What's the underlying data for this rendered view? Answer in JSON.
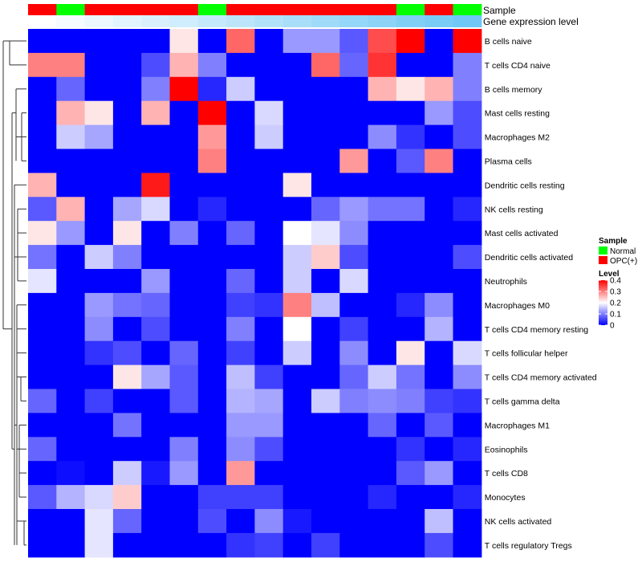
{
  "chart_data": {
    "type": "heatmap",
    "title": "",
    "annotation_labels": {
      "sample": "Sample",
      "expression": "Gene expression level"
    },
    "rows": [
      "B cells naive",
      "T cells CD4 naive",
      "B cells memory",
      "Mast cells resting",
      "Macrophages M2",
      "Plasma cells",
      "Dendritic cells resting",
      "NK cells resting",
      "Mast cells activated",
      "Dendritic cells activated",
      "Neutrophils",
      "Macrophages M0",
      "T cells CD4 memory resting",
      "T cells follicular helper",
      "T cells CD4 memory activated",
      "T cells gamma delta",
      "Macrophages M1",
      "Eosinophils",
      "T cells CD8",
      "Monocytes",
      "NK cells activated",
      "T cells regulatory  Tregs"
    ],
    "columns_sample": [
      "OPC(+)",
      "Normal",
      "OPC(+)",
      "OPC(+)",
      "OPC(+)",
      "OPC(+)",
      "Normal",
      "OPC(+)",
      "OPC(+)",
      "OPC(+)",
      "OPC(+)",
      "OPC(+)",
      "OPC(+)",
      "Normal",
      "OPC(+)",
      "Normal"
    ],
    "columns_expression": [
      0.02,
      0.04,
      0.06,
      0.08,
      0.1,
      0.12,
      0.14,
      0.16,
      0.18,
      0.2,
      0.22,
      0.24,
      0.26,
      0.28,
      0.3,
      0.32
    ],
    "values": [
      [
        0.0,
        0.0,
        0.0,
        0.0,
        0.0,
        0.22,
        0.0,
        0.32,
        0.0,
        0.12,
        0.12,
        0.07,
        0.34,
        0.4,
        0.0,
        0.4
      ],
      [
        0.3,
        0.3,
        0.0,
        0.0,
        0.06,
        0.26,
        0.1,
        0.0,
        0.0,
        0.0,
        0.32,
        0.08,
        0.36,
        0.0,
        0.0,
        0.1
      ],
      [
        0.0,
        0.08,
        0.0,
        0.0,
        0.1,
        0.4,
        0.03,
        0.16,
        0.0,
        0.0,
        0.0,
        0.0,
        0.26,
        0.22,
        0.26,
        0.1
      ],
      [
        0.0,
        0.26,
        0.22,
        0.0,
        0.26,
        0.0,
        0.4,
        0.0,
        0.17,
        0.0,
        0.0,
        0.0,
        0.0,
        0.0,
        0.12,
        0.06
      ],
      [
        0.0,
        0.16,
        0.13,
        0.0,
        0.0,
        0.0,
        0.28,
        0.0,
        0.16,
        0.0,
        0.0,
        0.0,
        0.11,
        0.04,
        0.0,
        0.06
      ],
      [
        0.0,
        0.0,
        0.0,
        0.0,
        0.0,
        0.0,
        0.3,
        0.0,
        0.0,
        0.0,
        0.0,
        0.28,
        0.0,
        0.07,
        0.3,
        0.0
      ],
      [
        0.26,
        0.0,
        0.0,
        0.0,
        0.38,
        0.0,
        0.0,
        0.0,
        0.0,
        0.22,
        0.0,
        0.0,
        0.0,
        0.0,
        0.0,
        0.0
      ],
      [
        0.07,
        0.26,
        0.0,
        0.13,
        0.17,
        0.0,
        0.03,
        0.0,
        0.0,
        0.0,
        0.08,
        0.12,
        0.09,
        0.09,
        0.0,
        0.03
      ],
      [
        0.22,
        0.12,
        0.0,
        0.22,
        0.0,
        0.1,
        0.0,
        0.08,
        0.0,
        0.2,
        0.18,
        0.11,
        0.0,
        0.0,
        0.0,
        0.0
      ],
      [
        0.09,
        0.0,
        0.16,
        0.1,
        0.0,
        0.0,
        0.0,
        0.0,
        0.0,
        0.16,
        0.24,
        0.06,
        0.0,
        0.0,
        0.0,
        0.06
      ],
      [
        0.18,
        0.0,
        0.0,
        0.0,
        0.12,
        0.0,
        0.0,
        0.08,
        0.0,
        0.16,
        0.0,
        0.17,
        0.0,
        0.0,
        0.0,
        0.0
      ],
      [
        0.0,
        0.0,
        0.12,
        0.09,
        0.08,
        0.0,
        0.0,
        0.05,
        0.04,
        0.3,
        0.15,
        0.0,
        0.0,
        0.03,
        0.11,
        0.0
      ],
      [
        0.0,
        0.0,
        0.11,
        0.0,
        0.06,
        0.0,
        0.0,
        0.1,
        0.0,
        0.2,
        0.0,
        0.05,
        0.0,
        0.0,
        0.14,
        0.0
      ],
      [
        0.0,
        0.0,
        0.04,
        0.06,
        0.0,
        0.08,
        0.0,
        0.05,
        0.0,
        0.16,
        0.0,
        0.11,
        0.0,
        0.22,
        0.0,
        0.17
      ],
      [
        0.0,
        0.0,
        0.0,
        0.22,
        0.13,
        0.07,
        0.0,
        0.15,
        0.05,
        0.0,
        0.0,
        0.08,
        0.16,
        0.09,
        0.0,
        0.11
      ],
      [
        0.08,
        0.0,
        0.05,
        0.0,
        0.0,
        0.07,
        0.0,
        0.14,
        0.13,
        0.0,
        0.16,
        0.1,
        0.11,
        0.1,
        0.05,
        0.04
      ],
      [
        0.0,
        0.0,
        0.0,
        0.09,
        0.0,
        0.0,
        0.0,
        0.12,
        0.12,
        0.0,
        0.0,
        0.0,
        0.08,
        0.0,
        0.07,
        0.0
      ],
      [
        0.08,
        0.0,
        0.0,
        0.0,
        0.0,
        0.1,
        0.0,
        0.11,
        0.06,
        0.0,
        0.0,
        0.0,
        0.0,
        0.04,
        0.0,
        0.03
      ],
      [
        0.0,
        0.01,
        0.0,
        0.16,
        0.02,
        0.12,
        0.0,
        0.28,
        0.0,
        0.0,
        0.0,
        0.0,
        0.0,
        0.07,
        0.12,
        0.0
      ],
      [
        0.07,
        0.14,
        0.17,
        0.24,
        0.0,
        0.0,
        0.05,
        0.05,
        0.05,
        0.0,
        0.0,
        0.0,
        0.03,
        0.0,
        0.0,
        0.03
      ],
      [
        0.0,
        0.0,
        0.18,
        0.08,
        0.0,
        0.0,
        0.06,
        0.0,
        0.11,
        0.02,
        0.0,
        0.0,
        0.0,
        0.0,
        0.15,
        0.0
      ],
      [
        0.0,
        0.0,
        0.18,
        0.0,
        0.0,
        0.0,
        0.0,
        0.04,
        0.05,
        0.0,
        0.05,
        0.0,
        0.0,
        0.0,
        0.06,
        0.0
      ]
    ],
    "color_scale": {
      "low": "#0000FF",
      "mid": "#FFFFFF",
      "high": "#FF0000",
      "min": 0,
      "mid_value": 0.2,
      "max": 0.4
    },
    "sample_colors": {
      "Normal": "#00FF00",
      "OPC(+)": "#FF0000"
    },
    "expression_colors": {
      "low": "#FFFFFF",
      "high": "#6FC8F5"
    },
    "legend_sample": {
      "title": "Sample",
      "items": [
        {
          "label": "Normal",
          "color": "#00FF00"
        },
        {
          "label": "OPC(+)",
          "color": "#FF0000"
        }
      ]
    },
    "legend_level": {
      "title": "Level",
      "ticks": [
        "0.4",
        "0.3",
        "0.2",
        "0.1",
        "0"
      ],
      "tick_values": [
        0.4,
        0.3,
        0.2,
        0.1,
        0
      ]
    },
    "dendrogram": "row-clustered"
  }
}
